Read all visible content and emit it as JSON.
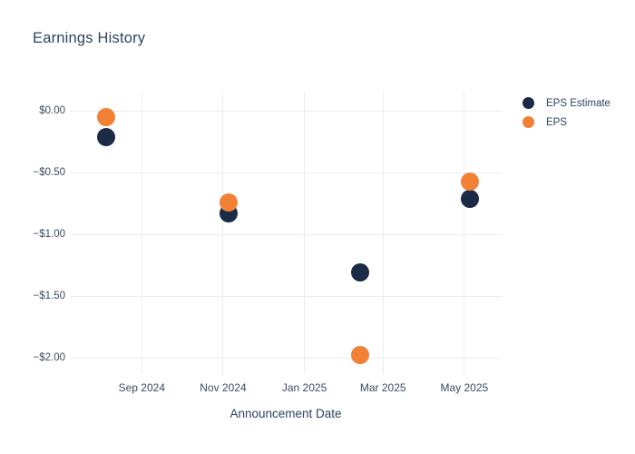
{
  "chart_data": {
    "type": "scatter",
    "title": "Earnings History",
    "xlabel": "Announcement Date",
    "ylabel": "",
    "grid": true,
    "legend_position": "top-right-outside",
    "background_color": "#ffffff",
    "gridline_color": "#e9edf4",
    "x_axis": {
      "range": [
        "2024-07-09",
        "2025-05-29"
      ],
      "ticks": [
        {
          "date": "2024-09-01",
          "label": "Sep 2024"
        },
        {
          "date": "2024-11-01",
          "label": "Nov 2024"
        },
        {
          "date": "2025-01-01",
          "label": "Jan 2025"
        },
        {
          "date": "2025-03-01",
          "label": "Mar 2025"
        },
        {
          "date": "2025-05-01",
          "label": "May 2025"
        }
      ]
    },
    "y_axis": {
      "range": [
        -2.132,
        0.162
      ],
      "ticks": [
        {
          "value": 0,
          "label": "$0.00"
        },
        {
          "value": -0.5,
          "label": "−$0.50"
        },
        {
          "value": -1,
          "label": "−$1.00"
        },
        {
          "value": -1.5,
          "label": "−$1.50"
        },
        {
          "value": -2,
          "label": "−$2.00"
        }
      ]
    },
    "series": [
      {
        "name": "EPS Estimate",
        "color": "#1b2a45",
        "points": [
          {
            "date": "2024-08-05",
            "value": -0.21
          },
          {
            "date": "2024-11-05",
            "value": -0.83
          },
          {
            "date": "2025-02-12",
            "value": -1.31
          },
          {
            "date": "2025-05-05",
            "value": -0.71
          }
        ]
      },
      {
        "name": "EPS",
        "color": "#f28136",
        "points": [
          {
            "date": "2024-08-05",
            "value": -0.05
          },
          {
            "date": "2024-11-05",
            "value": -0.74
          },
          {
            "date": "2025-02-12",
            "value": -1.98
          },
          {
            "date": "2025-05-05",
            "value": -0.57
          }
        ]
      }
    ]
  }
}
